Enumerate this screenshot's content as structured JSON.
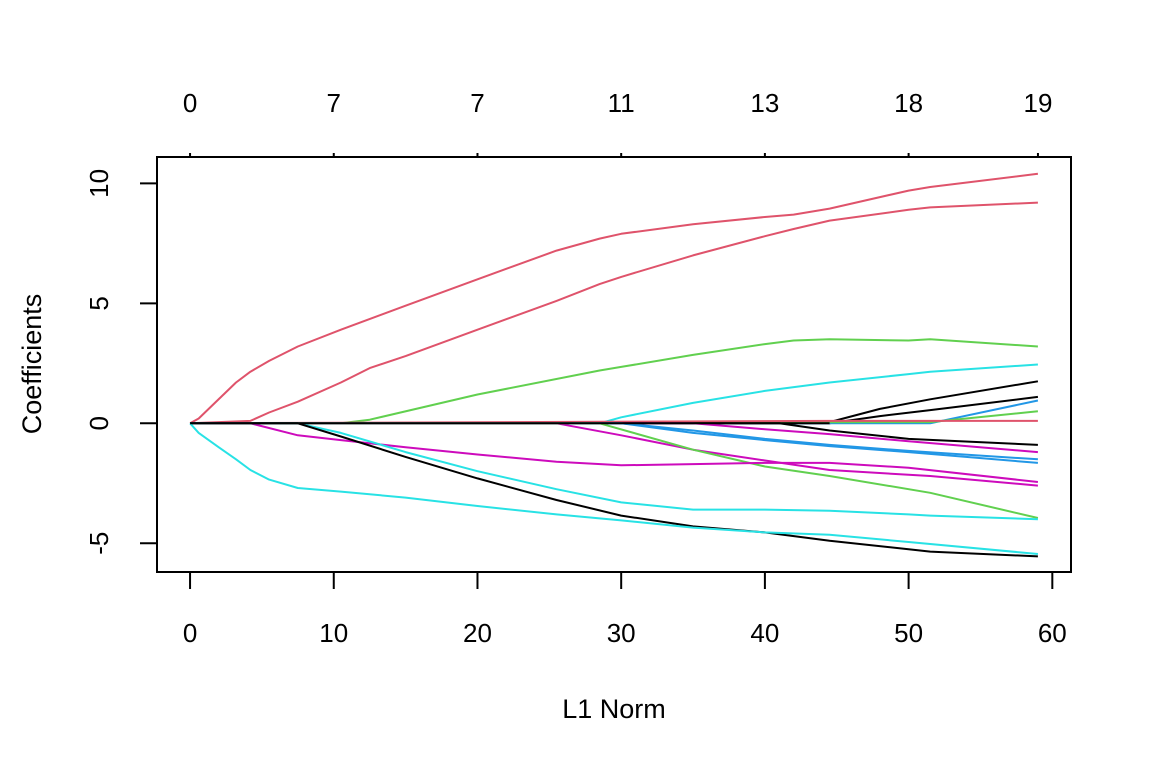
{
  "chart_data": {
    "type": "line",
    "title": "",
    "xlabel": "L1 Norm",
    "ylabel": "Coefficients",
    "xlim": [
      -2.3,
      61.3
    ],
    "ylim": [
      -6.2,
      11.1
    ],
    "x_ticks": [
      0,
      10,
      20,
      30,
      40,
      50,
      60
    ],
    "x_tick_labels": [
      "0",
      "10",
      "20",
      "30",
      "40",
      "50",
      "60"
    ],
    "y_ticks": [
      -5,
      0,
      5,
      10
    ],
    "y_tick_labels": [
      "-5",
      "0",
      "5",
      "10"
    ],
    "top_ticks": [
      0,
      10,
      20,
      30,
      40,
      50,
      59
    ],
    "top_tick_labels": [
      "0",
      "7",
      "7",
      "11",
      "13",
      "18",
      "19"
    ],
    "grid": false,
    "legend": "none",
    "series": [
      {
        "color": "#DF536B",
        "x": [
          0,
          0.6,
          3.2,
          4.2,
          5.5,
          7.5,
          10.5,
          15,
          20,
          25.5,
          28.5,
          30,
          35,
          40,
          42,
          44.5,
          50,
          51.5,
          59
        ],
        "y": [
          0,
          0.2,
          1.7,
          2.15,
          2.6,
          3.2,
          3.9,
          4.9,
          6.0,
          7.2,
          7.7,
          7.9,
          8.3,
          8.6,
          8.7,
          8.95,
          9.7,
          9.85,
          10.4
        ]
      },
      {
        "color": "#DF536B",
        "x": [
          0,
          4.2,
          5.5,
          7.5,
          10.5,
          12.5,
          15,
          20,
          25.5,
          28.5,
          30,
          35,
          40,
          42,
          44.5,
          50,
          51.5,
          59
        ],
        "y": [
          0,
          0.1,
          0.45,
          0.9,
          1.7,
          2.3,
          2.8,
          3.9,
          5.1,
          5.8,
          6.1,
          7.0,
          7.8,
          8.1,
          8.45,
          8.9,
          9.0,
          9.2
        ]
      },
      {
        "color": "#61D04F",
        "x": [
          0,
          10.5,
          12.5,
          20,
          28.5,
          30,
          35,
          40,
          42,
          44.5,
          50,
          51.5,
          59
        ],
        "y": [
          0,
          0,
          0.15,
          1.2,
          2.2,
          2.35,
          2.85,
          3.3,
          3.45,
          3.5,
          3.45,
          3.5,
          3.2
        ]
      },
      {
        "color": "#28E2E5",
        "x": [
          0,
          28.5,
          30,
          35,
          40,
          44.5,
          50,
          51.5,
          59
        ],
        "y": [
          0,
          0,
          0.25,
          0.85,
          1.35,
          1.7,
          2.05,
          2.15,
          2.45
        ]
      },
      {
        "color": "#000000",
        "x": [
          0,
          44.5,
          48,
          51.5,
          59
        ],
        "y": [
          0,
          0.05,
          0.6,
          1.0,
          1.75
        ]
      },
      {
        "color": "#000000",
        "x": [
          0,
          44.5,
          48,
          51.5,
          59
        ],
        "y": [
          0,
          0,
          0.3,
          0.55,
          1.1
        ]
      },
      {
        "color": "#2297E6",
        "x": [
          0,
          51.5,
          59
        ],
        "y": [
          0,
          0,
          0.95
        ]
      },
      {
        "color": "#61D04F",
        "x": [
          0,
          51.5,
          59
        ],
        "y": [
          0,
          0.05,
          0.5
        ]
      },
      {
        "color": "#DF536B",
        "x": [
          0,
          44.5,
          59
        ],
        "y": [
          0,
          0.1,
          0.1
        ]
      },
      {
        "color": "#000000",
        "x": [
          0,
          41,
          44.5,
          50,
          59
        ],
        "y": [
          0,
          0,
          -0.3,
          -0.65,
          -0.9
        ]
      },
      {
        "color": "#CD0BBC",
        "x": [
          0,
          35,
          40,
          44.5,
          50,
          59
        ],
        "y": [
          0,
          0,
          -0.25,
          -0.45,
          -0.75,
          -1.2
        ]
      },
      {
        "color": "#2297E6",
        "x": [
          0,
          30,
          35,
          40,
          44.5,
          50,
          59
        ],
        "y": [
          0,
          0,
          -0.3,
          -0.65,
          -0.9,
          -1.15,
          -1.5
        ]
      },
      {
        "color": "#2297E6",
        "x": [
          0,
          30,
          35,
          40,
          44.5,
          50,
          59
        ],
        "y": [
          0,
          0,
          -0.4,
          -0.7,
          -0.95,
          -1.2,
          -1.65
        ]
      },
      {
        "color": "#CD0BBC",
        "x": [
          0,
          25.5,
          30,
          35,
          40,
          44.5,
          50,
          51.5,
          59
        ],
        "y": [
          0,
          0,
          -0.5,
          -1.1,
          -1.55,
          -1.95,
          -2.15,
          -2.2,
          -2.6
        ]
      },
      {
        "color": "#61D04F",
        "x": [
          0,
          28.5,
          35,
          40,
          44.5,
          51.5,
          59
        ],
        "y": [
          0,
          0,
          -1.1,
          -1.8,
          -2.2,
          -2.9,
          -3.95
        ]
      },
      {
        "color": "#CD0BBC",
        "x": [
          0,
          4.2,
          7.5,
          10.5,
          15,
          20,
          25.5,
          30,
          35,
          40,
          44.5,
          50,
          59
        ],
        "y": [
          0,
          0,
          -0.5,
          -0.7,
          -1.0,
          -1.3,
          -1.6,
          -1.75,
          -1.7,
          -1.65,
          -1.65,
          -1.85,
          -2.45
        ]
      },
      {
        "color": "#28E2E5",
        "x": [
          0,
          7.5,
          10.5,
          15,
          20,
          25.5,
          30,
          35,
          40,
          44.5,
          50,
          51.5,
          59
        ],
        "y": [
          0,
          0,
          -0.4,
          -1.2,
          -2.0,
          -2.75,
          -3.3,
          -3.6,
          -3.6,
          -3.65,
          -3.8,
          -3.85,
          -4.0
        ]
      },
      {
        "color": "#000000",
        "x": [
          0,
          7.5,
          10.5,
          15,
          20,
          25.5,
          30,
          35,
          40,
          44.5,
          50,
          51.5,
          59
        ],
        "y": [
          0,
          0,
          -0.55,
          -1.4,
          -2.3,
          -3.2,
          -3.85,
          -4.3,
          -4.55,
          -4.9,
          -5.25,
          -5.35,
          -5.55
        ]
      },
      {
        "color": "#28E2E5",
        "x": [
          0,
          0.6,
          2,
          3.2,
          4.2,
          5.5,
          7.5,
          10.5,
          15,
          20,
          25.5,
          30,
          35,
          40,
          44.5,
          50,
          59
        ],
        "y": [
          0,
          -0.4,
          -1.0,
          -1.5,
          -1.95,
          -2.35,
          -2.7,
          -2.85,
          -3.1,
          -3.45,
          -3.8,
          -4.05,
          -4.35,
          -4.55,
          -4.65,
          -4.95,
          -5.45
        ]
      },
      {
        "color": "#000000",
        "x": [
          0,
          44.5
        ],
        "y": [
          0,
          0
        ]
      }
    ]
  }
}
